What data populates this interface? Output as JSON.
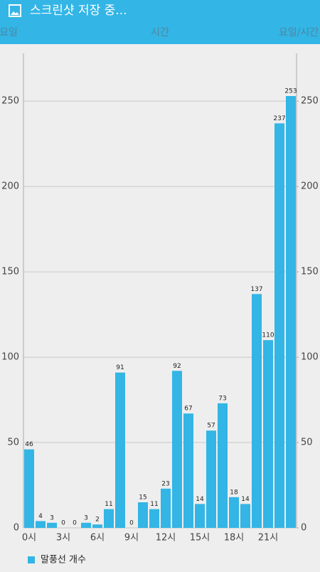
{
  "status_bar": {
    "title": "스크린샷 저장 중..."
  },
  "tabs": [
    "요일",
    "시간",
    "요일/시간"
  ],
  "chart_data": {
    "type": "bar",
    "categories": [
      "0시",
      null,
      null,
      "3시",
      null,
      null,
      "6시",
      null,
      null,
      "9시",
      null,
      null,
      "12시",
      null,
      null,
      "15시",
      null,
      null,
      "18시",
      null,
      null,
      "21시",
      null,
      null
    ],
    "series": [
      {
        "name": "말풍선 개수",
        "color": "#33b5e5",
        "values": [
          46,
          4,
          3,
          0,
          0,
          3,
          2,
          11,
          91,
          0,
          15,
          11,
          23,
          92,
          67,
          14,
          57,
          73,
          18,
          14,
          137,
          110,
          237,
          253
        ]
      }
    ],
    "ylim": [
      0,
      278
    ],
    "yticks": [
      0,
      50,
      100,
      150,
      200,
      250
    ],
    "y2lim": [
      0,
      278
    ],
    "y2ticks": [
      0,
      50,
      100,
      150,
      200,
      250
    ],
    "grid": true,
    "legend": "bottom-left"
  }
}
